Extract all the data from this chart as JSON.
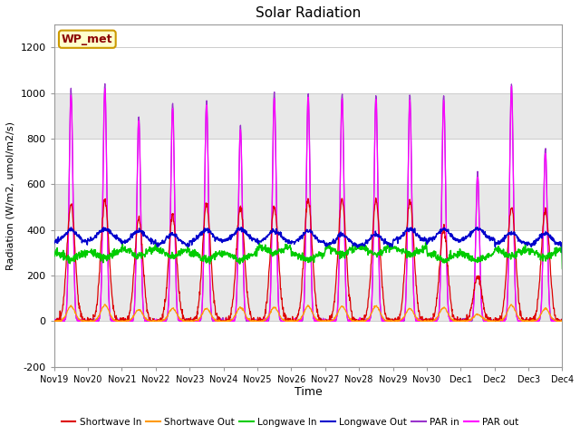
{
  "title": "Solar Radiation",
  "ylabel": "Radiation (W/m2, umol/m2/s)",
  "xlabel": "Time",
  "site_label": "WP_met",
  "ylim": [
    -200,
    1300
  ],
  "yticks": [
    -200,
    0,
    200,
    400,
    600,
    800,
    1000,
    1200
  ],
  "legend": [
    {
      "label": "Shortwave In",
      "color": "#dd0000"
    },
    {
      "label": "Shortwave Out",
      "color": "#ff9900"
    },
    {
      "label": "Longwave In",
      "color": "#00cc00"
    },
    {
      "label": "Longwave Out",
      "color": "#0000cc"
    },
    {
      "label": "PAR in",
      "color": "#9933cc"
    },
    {
      "label": "PAR out",
      "color": "#ff00ff"
    }
  ],
  "xtick_labels": [
    "Nov 19",
    "Nov 20",
    "Nov 21",
    "Nov 22",
    "Nov 23",
    "Nov 24",
    "Nov 25",
    "Nov 26",
    "Nov 27",
    "Nov 28",
    "Nov 29",
    "Nov 30",
    "Dec 1",
    "Dec 2",
    "Dec 3",
    "Dec 4"
  ],
  "n_days": 15,
  "pts_per_day": 96,
  "background_color": "#ffffff",
  "band_color": "#e8e8e8",
  "band_ranges": [
    [
      0,
      200
    ],
    [
      400,
      600
    ],
    [
      800,
      1000
    ]
  ],
  "par_peaks": [
    1020,
    1040,
    900,
    960,
    970,
    860,
    1000,
    1000,
    1000,
    990,
    990,
    990,
    650,
    1040,
    760
  ],
  "sw_peaks": [
    510,
    530,
    450,
    460,
    510,
    500,
    500,
    530,
    530,
    530,
    530,
    400,
    200,
    500,
    490
  ],
  "sw_out_peaks": [
    65,
    70,
    50,
    55,
    55,
    60,
    60,
    65,
    65,
    65,
    55,
    60,
    30,
    70,
    55
  ]
}
